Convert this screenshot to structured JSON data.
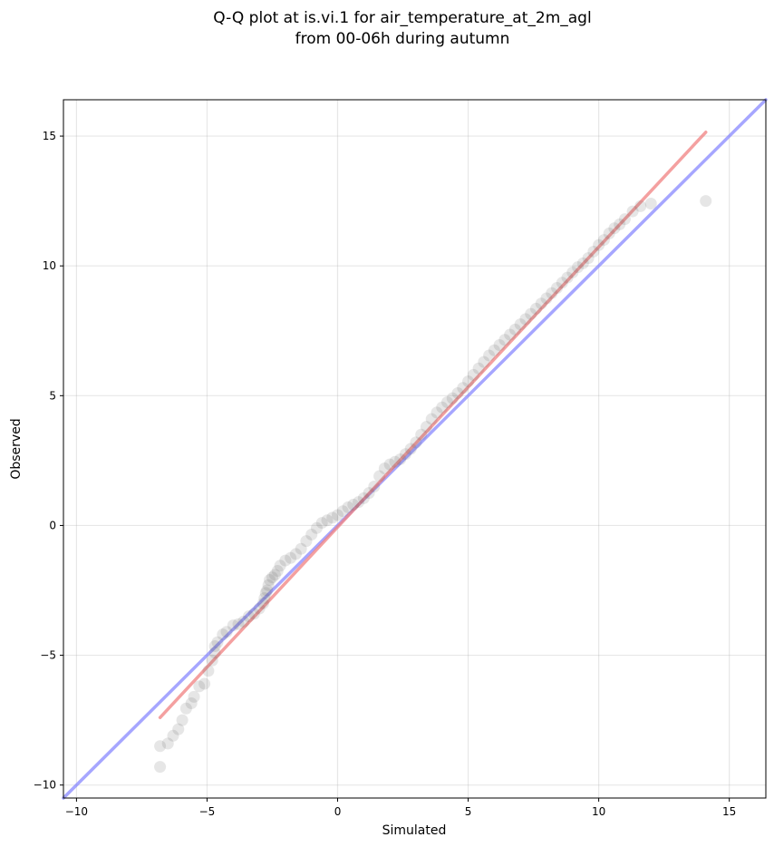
{
  "chart_data": {
    "type": "scatter",
    "title_line1": "Q-Q plot at is.vi.1 for air_temperature_at_2m_agl",
    "title_line2": "from 00-06h during autumn",
    "xlabel": "Simulated",
    "ylabel": "Observed",
    "xlim": [
      -10.5,
      16.4
    ],
    "ylim": [
      -10.5,
      16.4
    ],
    "xticks": [
      -10,
      -5,
      0,
      5,
      10,
      15
    ],
    "yticks": [
      -10,
      -5,
      0,
      5,
      10,
      15
    ],
    "xtick_labels": [
      "−10",
      "−5",
      "0",
      "5",
      "10",
      "15"
    ],
    "ytick_labels": [
      "−10",
      "−5",
      "0",
      "5",
      "10",
      "15"
    ],
    "grid": true,
    "fit_line": {
      "x": [
        -6.8,
        14.1
      ],
      "y": [
        -7.4,
        15.15
      ],
      "color": "#f08080"
    },
    "identity_line": {
      "x": [
        -10.5,
        16.4
      ],
      "y": [
        -10.5,
        16.4
      ],
      "color": "#8080ff"
    },
    "point_color": "#555555",
    "quantiles": {
      "x": [
        -6.8,
        -6.8,
        -6.5,
        -6.3,
        -6.1,
        -5.95,
        -5.8,
        -5.6,
        -5.5,
        -5.3,
        -5.1,
        -4.95,
        -4.8,
        -4.7,
        -4.7,
        -4.6,
        -4.4,
        -4.25,
        -4.0,
        -3.8,
        -3.6,
        -3.4,
        -3.2,
        -3.0,
        -2.85,
        -2.8,
        -2.75,
        -2.7,
        -2.65,
        -2.6,
        -2.5,
        -2.4,
        -2.3,
        -2.2,
        -2.0,
        -1.8,
        -1.6,
        -1.4,
        -1.2,
        -1.0,
        -0.8,
        -0.6,
        -0.4,
        -0.2,
        0.0,
        0.2,
        0.4,
        0.6,
        0.8,
        1.0,
        1.2,
        1.4,
        1.6,
        1.8,
        2.0,
        2.2,
        2.4,
        2.6,
        2.8,
        3.0,
        3.2,
        3.4,
        3.6,
        3.8,
        4.0,
        4.2,
        4.4,
        4.6,
        4.8,
        5.0,
        5.2,
        5.4,
        5.6,
        5.8,
        6.0,
        6.2,
        6.4,
        6.6,
        6.8,
        7.0,
        7.2,
        7.4,
        7.6,
        7.8,
        8.0,
        8.2,
        8.4,
        8.6,
        8.8,
        9.0,
        9.2,
        9.4,
        9.6,
        9.8,
        10.0,
        10.2,
        10.4,
        10.6,
        10.8,
        11.0,
        11.3,
        11.6,
        12.0,
        14.1
      ],
      "y": [
        -9.3,
        -8.5,
        -8.4,
        -8.1,
        -7.85,
        -7.5,
        -7.05,
        -6.85,
        -6.6,
        -6.2,
        -6.1,
        -5.6,
        -5.2,
        -4.9,
        -4.65,
        -4.5,
        -4.2,
        -4.1,
        -3.85,
        -3.8,
        -3.7,
        -3.5,
        -3.4,
        -3.2,
        -3.0,
        -2.8,
        -2.6,
        -2.5,
        -2.3,
        -2.1,
        -2.0,
        -1.9,
        -1.75,
        -1.55,
        -1.35,
        -1.25,
        -1.1,
        -0.9,
        -0.6,
        -0.35,
        -0.1,
        0.1,
        0.2,
        0.3,
        0.4,
        0.55,
        0.7,
        0.8,
        0.9,
        1.05,
        1.25,
        1.5,
        1.9,
        2.2,
        2.35,
        2.45,
        2.55,
        2.75,
        2.95,
        3.2,
        3.5,
        3.8,
        4.1,
        4.35,
        4.55,
        4.75,
        4.9,
        5.1,
        5.3,
        5.55,
        5.8,
        6.05,
        6.3,
        6.55,
        6.75,
        6.95,
        7.15,
        7.35,
        7.55,
        7.75,
        7.95,
        8.15,
        8.35,
        8.55,
        8.75,
        8.95,
        9.15,
        9.35,
        9.55,
        9.75,
        9.95,
        10.1,
        10.3,
        10.55,
        10.8,
        11.0,
        11.25,
        11.45,
        11.6,
        11.8,
        12.1,
        12.3,
        12.4,
        12.5
      ]
    }
  }
}
